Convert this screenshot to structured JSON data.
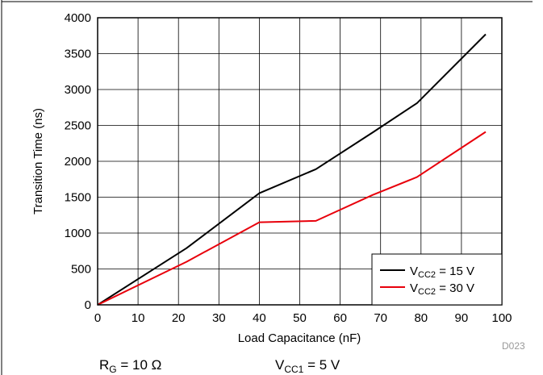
{
  "chart_data": {
    "type": "line",
    "xlabel": "Load Capacitance (nF)",
    "ylabel": "Transition Time (ns)",
    "xlim": [
      0,
      100
    ],
    "ylim": [
      0,
      4000
    ],
    "xticks": [
      0,
      10,
      20,
      30,
      40,
      50,
      60,
      70,
      80,
      90,
      100
    ],
    "yticks": [
      0,
      500,
      1000,
      1500,
      2000,
      2500,
      3000,
      3500,
      4000
    ],
    "grid": true,
    "legend_position": "bottom-right",
    "series": [
      {
        "name_main": "V",
        "name_sub": "CC2",
        "name_rest": " = 15 V",
        "color": "#000000",
        "points": [
          [
            0,
            0
          ],
          [
            22,
            790
          ],
          [
            40,
            1555
          ],
          [
            54,
            1890
          ],
          [
            68,
            2400
          ],
          [
            79,
            2810
          ],
          [
            96,
            3770
          ]
        ]
      },
      {
        "name_main": "V",
        "name_sub": "CC2",
        "name_rest": " = 30 V",
        "color": "#e8000b",
        "points": [
          [
            0,
            0
          ],
          [
            22,
            600
          ],
          [
            40,
            1150
          ],
          [
            54,
            1170
          ],
          [
            68,
            1530
          ],
          [
            79,
            1780
          ],
          [
            96,
            2410
          ]
        ]
      }
    ]
  },
  "footer": {
    "rg_main": "R",
    "rg_sub": "G",
    "rg_rest": " = 10 Ω",
    "vcc1_main": "V",
    "vcc1_sub": "CC1",
    "vcc1_rest": " = 5 V"
  },
  "figure_id": "D023"
}
